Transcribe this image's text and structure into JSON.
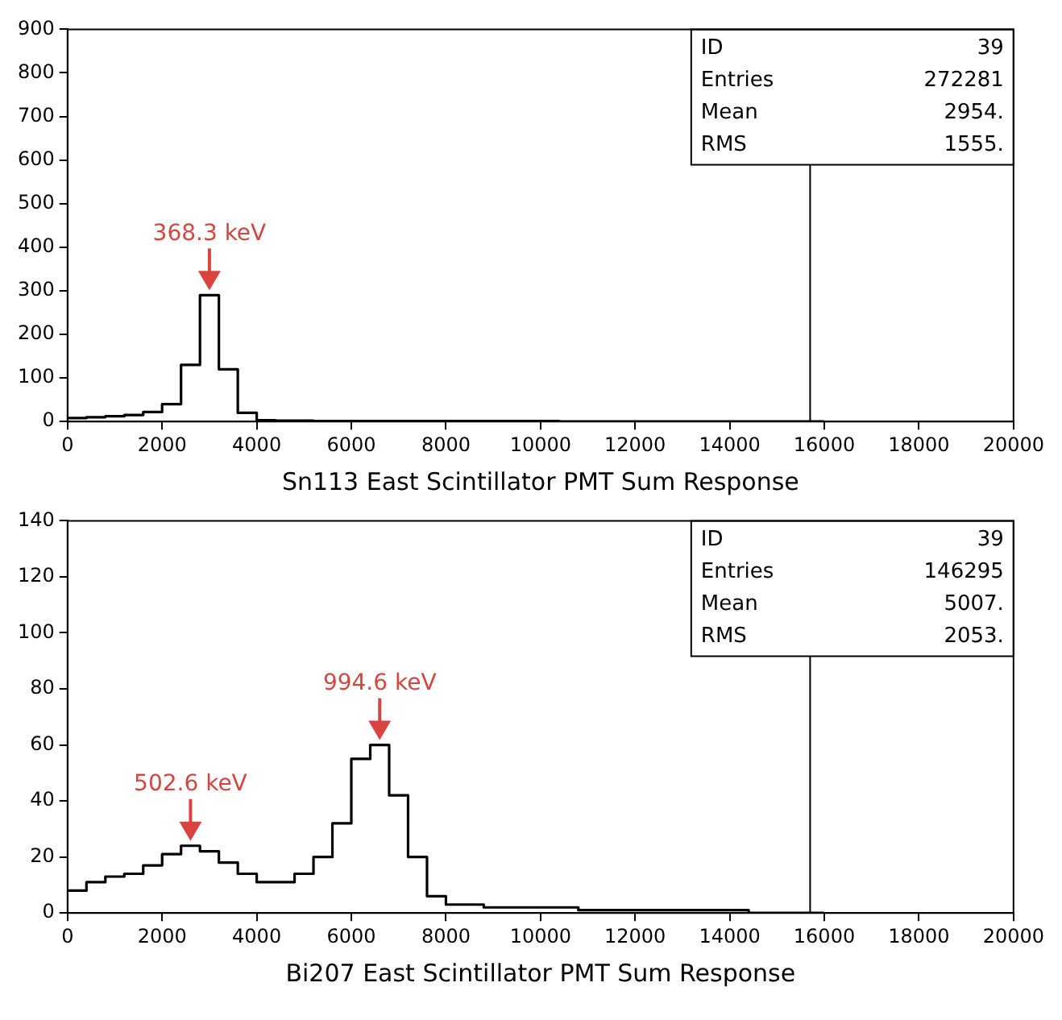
{
  "chart_data": [
    {
      "type": "histogram",
      "xlabel": "Sn113 East Scintillator PMT Sum Response",
      "color": "#000000",
      "grid": false,
      "bins": [
        0,
        400,
        800,
        1200,
        1600,
        2000,
        2400,
        2800,
        3200,
        3600,
        4000,
        4400,
        4800,
        5200,
        5600,
        6000,
        6400,
        6800,
        7200,
        7600,
        8000,
        8400,
        8800,
        9200,
        9600,
        10000,
        10400,
        10800,
        11200,
        11600,
        12000,
        12400,
        12800,
        13200,
        13600,
        14000,
        14400,
        14800,
        15200,
        15600,
        16000
      ],
      "values": [
        8,
        10,
        12,
        15,
        22,
        40,
        130,
        290,
        120,
        20,
        3,
        2,
        2,
        1,
        1,
        1,
        1,
        1,
        1,
        1,
        1,
        1,
        1,
        1,
        1,
        1,
        0,
        0,
        0,
        0,
        0,
        0,
        0,
        0,
        0,
        0,
        0,
        0,
        0,
        0
      ],
      "xlim": [
        0,
        20000
      ],
      "xticks": [
        0,
        2000,
        4000,
        6000,
        8000,
        10000,
        12000,
        14000,
        16000,
        18000,
        20000
      ],
      "ylim": [
        0,
        900
      ],
      "yticks": [
        0,
        100,
        200,
        300,
        400,
        500,
        600,
        700,
        800,
        900
      ],
      "ref_lines": [
        {
          "axis": "x",
          "value": 15700,
          "color": "#000000"
        }
      ],
      "annotations": [
        {
          "text": "368.3 keV",
          "x": 3000,
          "y": 290
        },
        "ID",
        "39",
        "Entries",
        "272281",
        "Mean",
        "2954.",
        "RMS",
        "1555."
      ]
    },
    {
      "type": "histogram",
      "xlabel": "Bi207 East Scintillator PMT Sum Response",
      "color": "#000000",
      "grid": false,
      "bins": [
        0,
        400,
        800,
        1200,
        1600,
        2000,
        2400,
        2800,
        3200,
        3600,
        4000,
        4400,
        4800,
        5200,
        5600,
        6000,
        6400,
        6800,
        7200,
        7600,
        8000,
        8400,
        8800,
        9200,
        9600,
        10000,
        10400,
        10800,
        11200,
        11600,
        12000,
        12400,
        12800,
        13200,
        13600,
        14000,
        14400,
        14800,
        15200,
        15600,
        16000
      ],
      "values": [
        8,
        11,
        13,
        14,
        17,
        21,
        24,
        22,
        18,
        14,
        11,
        11,
        14,
        20,
        32,
        55,
        60,
        42,
        20,
        6,
        3,
        3,
        2,
        2,
        2,
        2,
        2,
        1,
        1,
        1,
        1,
        1,
        1,
        1,
        1,
        1,
        0,
        0,
        0,
        0
      ],
      "xlim": [
        0,
        20000
      ],
      "xticks": [
        0,
        2000,
        4000,
        6000,
        8000,
        10000,
        12000,
        14000,
        16000,
        18000,
        20000
      ],
      "ylim": [
        0,
        140
      ],
      "yticks": [
        0,
        20,
        40,
        60,
        80,
        100,
        120,
        140
      ],
      "ref_lines": [
        {
          "axis": "x",
          "value": 15700,
          "color": "#000000"
        }
      ],
      "annotations": [
        {
          "text": "502.6 keV",
          "x": 2600,
          "y": 24
        },
        {
          "text": "994.6 keV",
          "x": 6600,
          "y": 60
        },
        "ID",
        "39",
        "Entries",
        "146295",
        "Mean",
        "5007.",
        "RMS",
        "2053."
      ]
    }
  ]
}
